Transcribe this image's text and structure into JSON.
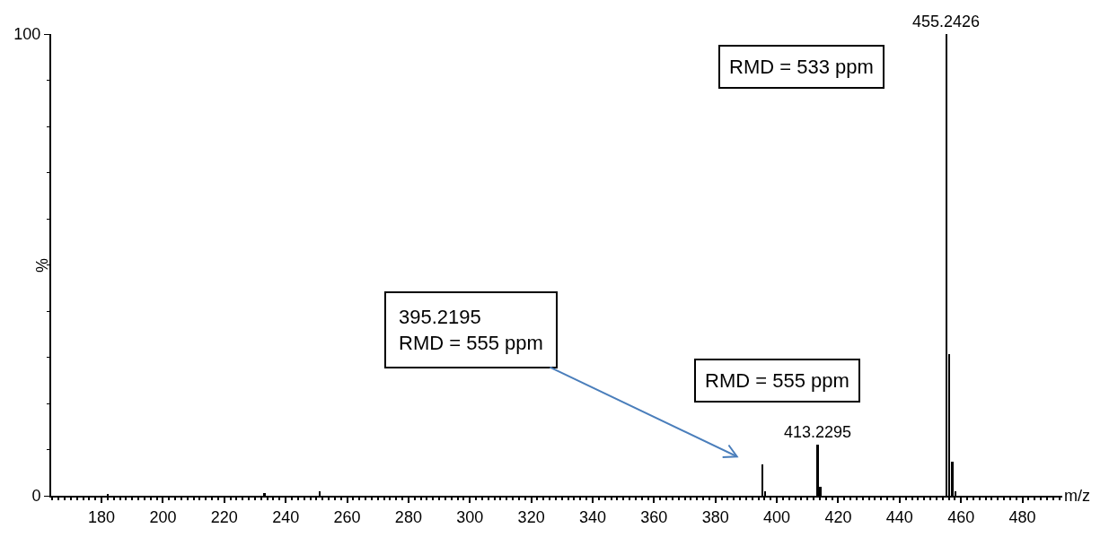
{
  "chart_data": {
    "type": "bar",
    "xlabel": "m/z",
    "ylabel": "%",
    "x": [
      182,
      233.1,
      251.1,
      395.2195,
      396.2,
      413.2295,
      414.2,
      455.2426,
      456.2,
      457.2,
      458.2
    ],
    "values": [
      0.3,
      0.5,
      1,
      6.8,
      1,
      11,
      2,
      100,
      30.6,
      7.4,
      1
    ],
    "color": "#000000",
    "xlim": [
      163.6,
      493
    ],
    "xticks": [
      180,
      200,
      220,
      240,
      260,
      280,
      300,
      320,
      340,
      360,
      380,
      400,
      420,
      440,
      460,
      480
    ],
    "ylim": [
      0,
      100
    ],
    "yticks": [
      0,
      100
    ],
    "legend": false,
    "annotations": [
      "RMD = 533 ppm",
      "RMD = 555 ppm",
      "395.2195\nRMD = 555 ppm",
      {
        "text": "413.2295",
        "x": 413.2295,
        "y": 11
      },
      {
        "text": "455.2426",
        "x": 455.2426,
        "y": 100
      }
    ]
  }
}
